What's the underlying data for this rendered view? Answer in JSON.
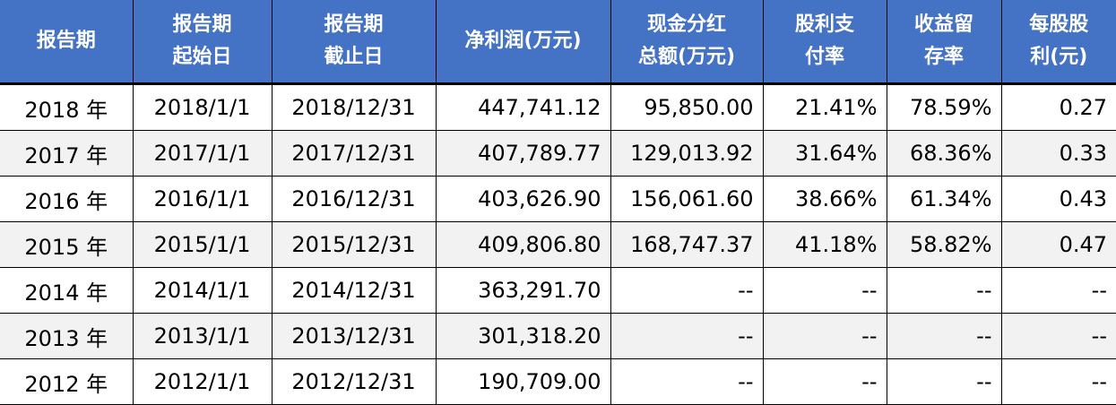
{
  "table": {
    "headers": [
      [
        "报告期"
      ],
      [
        "报告期",
        "起始日"
      ],
      [
        "报告期",
        "截止日"
      ],
      [
        "净利润(万元)"
      ],
      [
        "现金分红",
        "总额(万元)"
      ],
      [
        "股利支",
        "付率"
      ],
      [
        "收益留",
        "存率"
      ],
      [
        "每股股",
        "利(元)"
      ]
    ],
    "rows": [
      [
        "2018 年",
        "2018/1/1",
        "2018/12/31",
        "447,741.12",
        "95,850.00",
        "21.41%",
        "78.59%",
        "0.27"
      ],
      [
        "2017 年",
        "2017/1/1",
        "2017/12/31",
        "407,789.77",
        "129,013.92",
        "31.64%",
        "68.36%",
        "0.33"
      ],
      [
        "2016 年",
        "2016/1/1",
        "2016/12/31",
        "403,626.90",
        "156,061.60",
        "38.66%",
        "61.34%",
        "0.43"
      ],
      [
        "2015 年",
        "2015/1/1",
        "2015/12/31",
        "409,806.80",
        "168,747.37",
        "41.18%",
        "58.82%",
        "0.47"
      ],
      [
        "2014 年",
        "2014/1/1",
        "2014/12/31",
        "363,291.70",
        "--",
        "--",
        "--",
        "--"
      ],
      [
        "2013 年",
        "2013/1/1",
        "2013/12/31",
        "301,318.20",
        "--",
        "--",
        "--",
        "--"
      ],
      [
        "2012 年",
        "2012/1/1",
        "2012/12/31",
        "190,709.00",
        "--",
        "--",
        "--",
        "--"
      ]
    ]
  },
  "colors": {
    "header_bg": "#4472c4",
    "alt_row_bg": "#f2f2f2"
  }
}
